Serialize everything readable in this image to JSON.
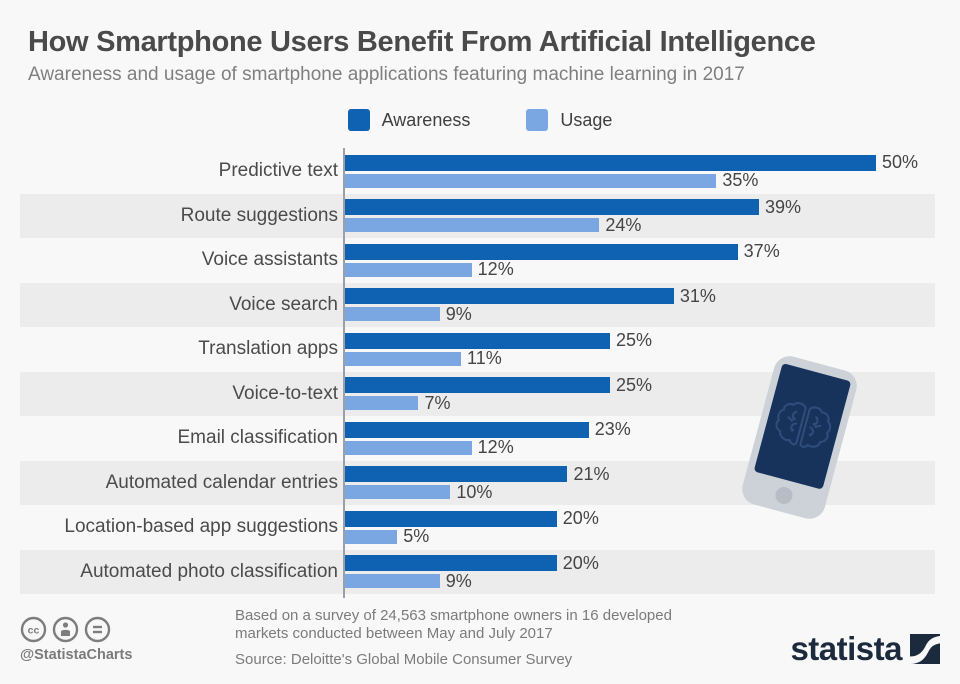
{
  "header": {
    "title": "How Smartphone Users Benefit From Artificial Intelligence",
    "subtitle": "Awareness and usage of smartphone applications featuring machine learning in 2017"
  },
  "chart_data": {
    "type": "bar",
    "orientation": "horizontal",
    "title": "How Smartphone Users Benefit From Artificial Intelligence",
    "categories": [
      "Predictive text",
      "Route suggestions",
      "Voice assistants",
      "Voice search",
      "Translation apps",
      "Voice-to-text",
      "Email classification",
      "Automated calendar entries",
      "Location-based app suggestions",
      "Automated photo classification"
    ],
    "series": [
      {
        "name": "Awareness",
        "color": "#0f62b2",
        "values": [
          50,
          39,
          37,
          31,
          25,
          25,
          23,
          21,
          20,
          20
        ]
      },
      {
        "name": "Usage",
        "color": "#7aa7e2",
        "values": [
          35,
          24,
          12,
          9,
          11,
          7,
          12,
          10,
          5,
          9
        ]
      }
    ],
    "value_suffix": "%",
    "xlim": [
      0,
      56
    ],
    "grid": false,
    "legend_position": "top",
    "row_band_color": "#ececec"
  },
  "footer": {
    "handle": "@StatistaCharts",
    "note_line1": "Based on a survey of 24,563 smartphone owners in 16 developed",
    "note_line2": "markets conducted between May and July 2017",
    "source": "Source: Deloitte's Global Mobile Consumer Survey",
    "brand": "statista"
  },
  "colors": {
    "background": "#f8f8f9",
    "axis": "#9aa0a6",
    "brand_navy": "#1b2a3c",
    "phone_body": "#ccd2d8",
    "phone_screen": "#17335c"
  },
  "icons": {
    "cc": "cc-circle-icon",
    "attribution": "person-circle-icon",
    "nd": "equals-circle-icon",
    "brain": "brain-circuit-icon",
    "logo_mark": "statista-swoosh-square"
  }
}
